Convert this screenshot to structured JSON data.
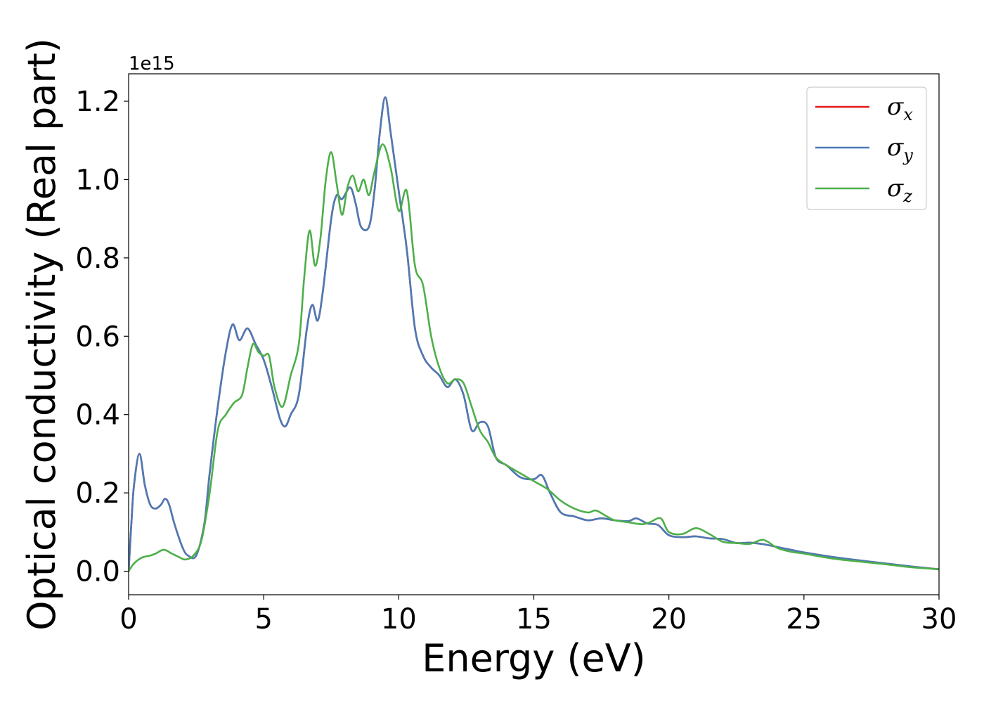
{
  "chart_data": {
    "type": "line",
    "xlabel": "Energy (eV)",
    "ylabel": "Optical conductivity (Real part)",
    "y_offset_text": "1e15",
    "xlim": [
      0,
      30
    ],
    "ylim": [
      -0.06,
      1.27
    ],
    "x_ticks": [
      0,
      5,
      10,
      15,
      20,
      25,
      30
    ],
    "x_tick_labels": [
      "0",
      "5",
      "10",
      "15",
      "20",
      "25",
      "30"
    ],
    "y_ticks": [
      0.0,
      0.2,
      0.4,
      0.6,
      0.8,
      1.0,
      1.2
    ],
    "y_tick_labels": [
      "0.0",
      "0.2",
      "0.4",
      "0.6",
      "0.8",
      "1.0",
      "1.2"
    ],
    "grid": false,
    "legend_position": "top-right",
    "series": [
      {
        "name": "σx",
        "symbol": "σ",
        "subscript": "x",
        "color": "#e41a1c",
        "x": [
          0,
          0.1,
          0.2,
          0.4,
          0.6,
          0.8,
          1.0,
          1.2,
          1.35,
          1.5,
          1.7,
          2.0,
          2.2,
          2.5,
          2.8,
          3.0,
          3.3,
          3.6,
          3.85,
          4.1,
          4.4,
          4.7,
          5.0,
          5.3,
          5.6,
          5.8,
          6.0,
          6.3,
          6.6,
          6.8,
          7.0,
          7.2,
          7.5,
          7.7,
          7.9,
          8.2,
          8.4,
          8.6,
          8.9,
          9.1,
          9.3,
          9.5,
          9.7,
          10.0,
          10.3,
          10.6,
          10.9,
          11.2,
          11.5,
          11.8,
          12.1,
          12.4,
          12.7,
          13.0,
          13.3,
          13.6,
          14.0,
          14.5,
          15.0,
          15.3,
          15.6,
          16.0,
          16.5,
          17.0,
          17.5,
          18.0,
          18.5,
          18.8,
          19.2,
          19.6,
          20.0,
          20.5,
          21.0,
          21.5,
          22.0,
          22.5,
          23.0,
          23.5,
          24.0,
          24.5,
          25.0,
          26.0,
          27.0,
          28.0,
          29.0,
          30.0
        ],
        "y": [
          0.0,
          0.12,
          0.22,
          0.3,
          0.22,
          0.17,
          0.16,
          0.17,
          0.185,
          0.17,
          0.12,
          0.06,
          0.04,
          0.04,
          0.12,
          0.25,
          0.42,
          0.56,
          0.63,
          0.59,
          0.62,
          0.58,
          0.54,
          0.47,
          0.39,
          0.37,
          0.4,
          0.45,
          0.62,
          0.68,
          0.64,
          0.72,
          0.9,
          0.96,
          0.95,
          0.98,
          0.94,
          0.88,
          0.88,
          0.97,
          1.12,
          1.21,
          1.12,
          0.97,
          0.82,
          0.62,
          0.55,
          0.52,
          0.5,
          0.47,
          0.49,
          0.45,
          0.36,
          0.38,
          0.37,
          0.29,
          0.27,
          0.24,
          0.235,
          0.245,
          0.2,
          0.15,
          0.14,
          0.13,
          0.135,
          0.13,
          0.128,
          0.135,
          0.122,
          0.118,
          0.092,
          0.087,
          0.089,
          0.084,
          0.082,
          0.072,
          0.073,
          0.069,
          0.062,
          0.055,
          0.048,
          0.037,
          0.028,
          0.02,
          0.012,
          0.005
        ]
      },
      {
        "name": "σy",
        "symbol": "σ",
        "subscript": "y",
        "color": "#4a7bb7",
        "x": [
          0,
          0.1,
          0.2,
          0.4,
          0.6,
          0.8,
          1.0,
          1.2,
          1.35,
          1.5,
          1.7,
          2.0,
          2.2,
          2.5,
          2.8,
          3.0,
          3.3,
          3.6,
          3.85,
          4.1,
          4.4,
          4.7,
          5.0,
          5.3,
          5.6,
          5.8,
          6.0,
          6.3,
          6.6,
          6.8,
          7.0,
          7.2,
          7.5,
          7.7,
          7.9,
          8.2,
          8.4,
          8.6,
          8.9,
          9.1,
          9.3,
          9.5,
          9.7,
          10.0,
          10.3,
          10.6,
          10.9,
          11.2,
          11.5,
          11.8,
          12.1,
          12.4,
          12.7,
          13.0,
          13.3,
          13.6,
          14.0,
          14.5,
          15.0,
          15.3,
          15.6,
          16.0,
          16.5,
          17.0,
          17.5,
          18.0,
          18.5,
          18.8,
          19.2,
          19.6,
          20.0,
          20.5,
          21.0,
          21.5,
          22.0,
          22.5,
          23.0,
          23.5,
          24.0,
          24.5,
          25.0,
          26.0,
          27.0,
          28.0,
          29.0,
          30.0
        ],
        "y": [
          0.0,
          0.12,
          0.22,
          0.3,
          0.22,
          0.17,
          0.16,
          0.17,
          0.185,
          0.17,
          0.12,
          0.06,
          0.04,
          0.04,
          0.12,
          0.25,
          0.42,
          0.56,
          0.63,
          0.59,
          0.62,
          0.58,
          0.54,
          0.47,
          0.39,
          0.37,
          0.4,
          0.45,
          0.62,
          0.68,
          0.64,
          0.72,
          0.9,
          0.96,
          0.95,
          0.98,
          0.94,
          0.88,
          0.88,
          0.97,
          1.12,
          1.21,
          1.12,
          0.97,
          0.82,
          0.62,
          0.55,
          0.52,
          0.5,
          0.47,
          0.49,
          0.45,
          0.36,
          0.38,
          0.37,
          0.29,
          0.27,
          0.24,
          0.235,
          0.245,
          0.2,
          0.15,
          0.14,
          0.13,
          0.135,
          0.13,
          0.128,
          0.135,
          0.122,
          0.118,
          0.092,
          0.087,
          0.089,
          0.084,
          0.082,
          0.072,
          0.073,
          0.069,
          0.062,
          0.055,
          0.048,
          0.037,
          0.028,
          0.02,
          0.012,
          0.005
        ]
      },
      {
        "name": "σz",
        "symbol": "σ",
        "subscript": "z",
        "color": "#4daf4a",
        "x": [
          0,
          0.2,
          0.5,
          0.8,
          1.0,
          1.3,
          1.6,
          1.9,
          2.1,
          2.4,
          2.7,
          3.0,
          3.3,
          3.6,
          3.9,
          4.2,
          4.4,
          4.6,
          4.8,
          5.0,
          5.2,
          5.4,
          5.7,
          6.0,
          6.3,
          6.5,
          6.7,
          6.9,
          7.1,
          7.3,
          7.5,
          7.7,
          7.9,
          8.1,
          8.3,
          8.5,
          8.7,
          8.9,
          9.1,
          9.4,
          9.7,
          10.0,
          10.3,
          10.6,
          10.9,
          11.2,
          11.5,
          11.8,
          12.1,
          12.4,
          12.7,
          13.0,
          13.3,
          13.6,
          14.0,
          14.5,
          15.0,
          15.5,
          16.0,
          16.5,
          17.0,
          17.3,
          17.7,
          18.0,
          18.5,
          19.0,
          19.3,
          19.7,
          20.0,
          20.5,
          21.0,
          21.5,
          22.0,
          22.5,
          23.0,
          23.5,
          24.0,
          24.5,
          25.0,
          26.0,
          27.0,
          28.0,
          29.0,
          30.0
        ],
        "y": [
          0.0,
          0.02,
          0.035,
          0.04,
          0.045,
          0.055,
          0.045,
          0.035,
          0.03,
          0.04,
          0.08,
          0.2,
          0.36,
          0.4,
          0.43,
          0.45,
          0.52,
          0.58,
          0.56,
          0.55,
          0.55,
          0.47,
          0.42,
          0.5,
          0.58,
          0.75,
          0.87,
          0.78,
          0.85,
          1.0,
          1.07,
          0.99,
          0.91,
          0.98,
          1.01,
          0.97,
          1.0,
          0.96,
          1.02,
          1.09,
          1.03,
          0.92,
          0.97,
          0.78,
          0.73,
          0.6,
          0.52,
          0.48,
          0.49,
          0.48,
          0.42,
          0.36,
          0.33,
          0.29,
          0.27,
          0.25,
          0.23,
          0.21,
          0.18,
          0.16,
          0.15,
          0.155,
          0.14,
          0.13,
          0.125,
          0.12,
          0.125,
          0.135,
          0.1,
          0.095,
          0.11,
          0.095,
          0.075,
          0.072,
          0.07,
          0.08,
          0.06,
          0.05,
          0.045,
          0.033,
          0.025,
          0.018,
          0.01,
          0.005
        ]
      }
    ]
  }
}
